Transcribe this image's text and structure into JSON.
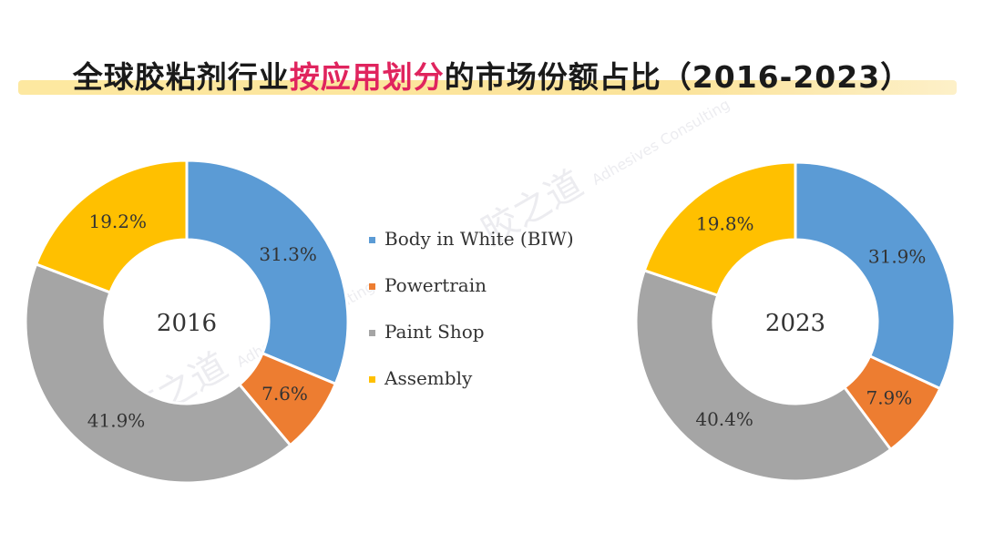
{
  "title": {
    "part1": "全球胶粘剂行业",
    "highlight": "按应用划分",
    "part2": "的市场份额占比（2016-2023）",
    "highlight_color": "#e0245e"
  },
  "watermark": {
    "cn": "胶之道",
    "en": "Adhesives Consulting"
  },
  "chart_data": [
    {
      "type": "pie",
      "variant": "donut",
      "center_label": "2016",
      "categories": [
        "Body in White (BIW)",
        "Powertrain",
        "Paint Shop",
        "Assembly"
      ],
      "values": [
        31.3,
        7.6,
        41.9,
        19.2
      ],
      "labels": [
        "31.3%",
        "7.6%",
        "41.9%",
        "19.2%"
      ],
      "colors": [
        "#5b9bd5",
        "#ed7d31",
        "#a5a5a5",
        "#ffc000"
      ]
    },
    {
      "type": "pie",
      "variant": "donut",
      "center_label": "2023",
      "categories": [
        "Body in White (BIW)",
        "Powertrain",
        "Paint Shop",
        "Assembly"
      ],
      "values": [
        31.9,
        7.9,
        40.4,
        19.8
      ],
      "labels": [
        "31.9%",
        "7.9%",
        "40.4%",
        "19.8%"
      ],
      "colors": [
        "#5b9bd5",
        "#ed7d31",
        "#a5a5a5",
        "#ffc000"
      ]
    }
  ],
  "legend": {
    "placement": "center",
    "items": [
      {
        "label": "Body in White (BIW)",
        "color": "#5b9bd5"
      },
      {
        "label": "Powertrain",
        "color": "#ed7d31"
      },
      {
        "label": "Paint Shop",
        "color": "#a5a5a5"
      },
      {
        "label": "Assembly",
        "color": "#ffc000"
      }
    ]
  }
}
